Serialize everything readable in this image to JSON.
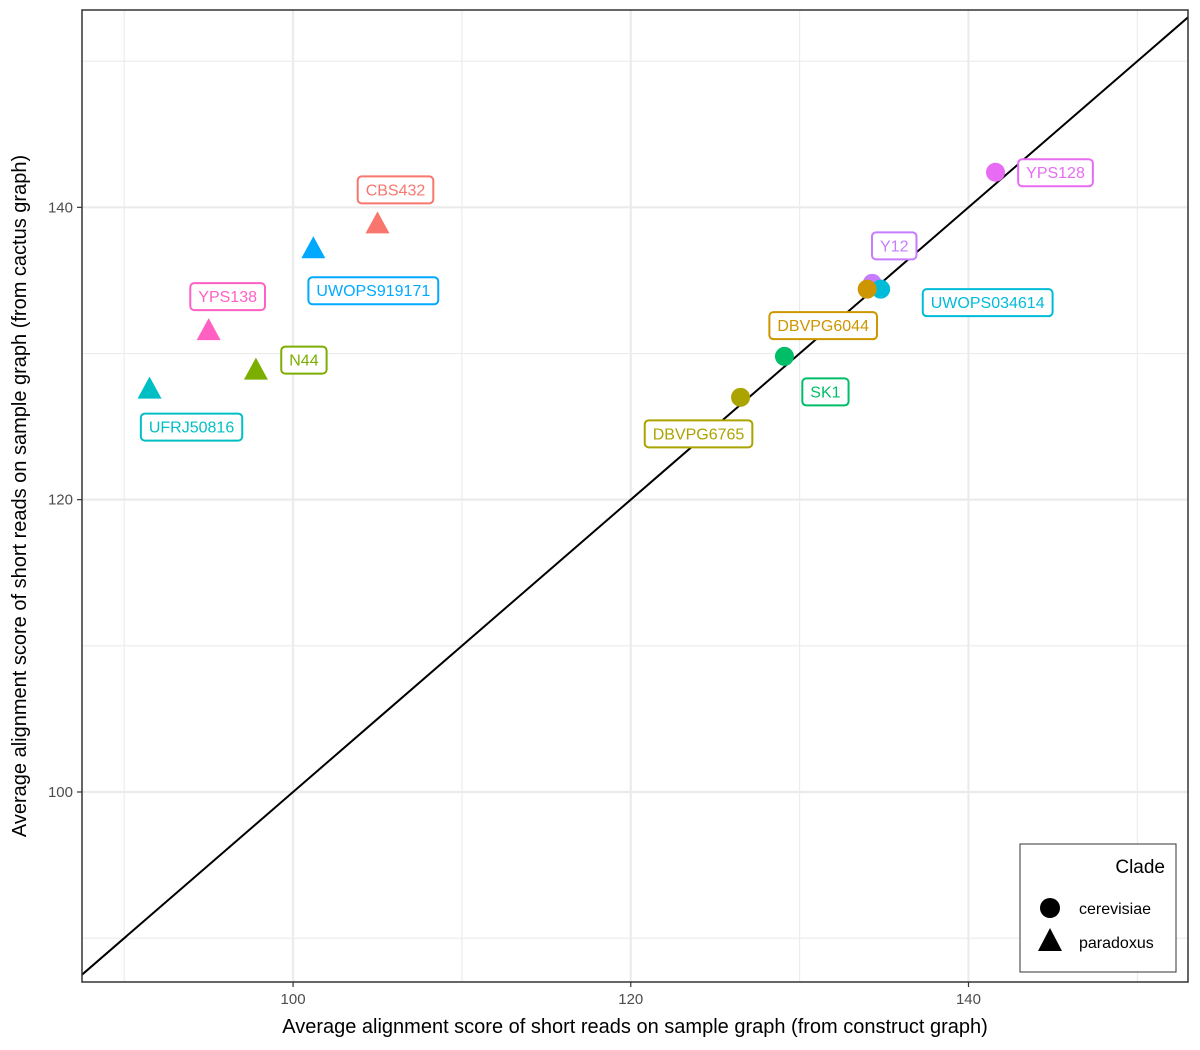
{
  "chart_data": {
    "type": "scatter",
    "xlabel": "Average alignment score of short reads on sample graph (from construct graph)",
    "ylabel": "Average alignment score of short reads on sample graph (from cactus graph)",
    "xlim": [
      87.5,
      153.0
    ],
    "ylim": [
      87.0,
      153.5
    ],
    "x_ticks": [
      100,
      120,
      140
    ],
    "y_ticks": [
      100,
      120,
      140
    ],
    "grid": true,
    "reference_line": "y = x",
    "legend": {
      "title": "Clade",
      "position": "bottom-right",
      "entries": [
        {
          "label": "cerevisiae",
          "shape": "circle"
        },
        {
          "label": "paradoxus",
          "shape": "triangle"
        }
      ]
    },
    "points": [
      {
        "label": "CBS432",
        "x": 105.0,
        "y": 138.9,
        "clade": "paradoxus",
        "color": "#F8766D"
      },
      {
        "label": "UWOPS919171",
        "x": 101.2,
        "y": 137.2,
        "clade": "paradoxus",
        "color": "#00A9FF"
      },
      {
        "label": "YPS138",
        "x": 95.0,
        "y": 131.6,
        "clade": "paradoxus",
        "color": "#FF61C3"
      },
      {
        "label": "N44",
        "x": 97.8,
        "y": 128.9,
        "clade": "paradoxus",
        "color": "#7CAE00"
      },
      {
        "label": "UFRJ50816",
        "x": 91.5,
        "y": 127.6,
        "clade": "paradoxus",
        "color": "#00BFC4"
      },
      {
        "label": "YPS128",
        "x": 141.6,
        "y": 142.4,
        "clade": "cerevisiae",
        "color": "#E76BF3"
      },
      {
        "label": "Y12",
        "x": 134.3,
        "y": 134.8,
        "clade": "cerevisiae",
        "color": "#C77CFF"
      },
      {
        "label": "UWOPS034614",
        "x": 134.8,
        "y": 134.4,
        "clade": "cerevisiae",
        "color": "#00BCD8"
      },
      {
        "label": "DBVPG6044",
        "x": 134.0,
        "y": 134.4,
        "clade": "cerevisiae",
        "color": "#CD9600"
      },
      {
        "label": "SK1",
        "x": 129.1,
        "y": 129.8,
        "clade": "cerevisiae",
        "color": "#00BE67"
      },
      {
        "label": "DBVPG6765",
        "x": 126.5,
        "y": 127.0,
        "clade": "cerevisiae",
        "color": "#ABA300"
      }
    ]
  }
}
